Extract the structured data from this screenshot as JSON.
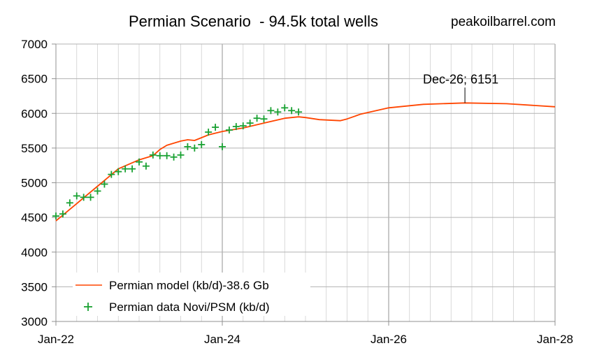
{
  "chart_data": {
    "type": "line",
    "title": "Permian Scenario  - 94.5k total wells",
    "source": "peakoilbarrel.com",
    "xlabel": "",
    "ylabel": "",
    "ylim": [
      3000,
      7000
    ],
    "y_ticks": [
      3000,
      3500,
      4000,
      4500,
      5000,
      5500,
      6000,
      6500,
      7000
    ],
    "x_ticks": [
      "Jan-22",
      "Jan-24",
      "Jan-26",
      "Jan-28"
    ],
    "grid": true,
    "legend_position": "bottom-left",
    "annotation": {
      "text": "Dec-26; 6151",
      "x": "2026-12",
      "y": 6151
    },
    "series": [
      {
        "name": "Permian model (kb/d)-38.6 Gb",
        "kind": "line",
        "color": "#ff4500",
        "x": [
          "2022-01",
          "2022-04",
          "2022-07",
          "2022-10",
          "2023-01",
          "2023-03",
          "2023-04",
          "2023-05",
          "2023-07",
          "2023-08",
          "2023-09",
          "2023-10",
          "2023-11",
          "2024-01",
          "2024-04",
          "2024-07",
          "2024-10",
          "2024-12",
          "2025-01",
          "2025-03",
          "2025-06",
          "2025-07",
          "2025-09",
          "2026-01",
          "2026-06",
          "2026-12",
          "2027-06",
          "2028-01"
        ],
        "y": [
          4450,
          4700,
          4950,
          5200,
          5330,
          5390,
          5480,
          5540,
          5600,
          5620,
          5610,
          5650,
          5690,
          5740,
          5790,
          5860,
          5930,
          5950,
          5940,
          5910,
          5895,
          5920,
          5990,
          6080,
          6130,
          6151,
          6140,
          6095
        ]
      },
      {
        "name": "Permian data Novi/PSM (kb/d)",
        "kind": "scatter",
        "color": "#19a132",
        "x": [
          "2022-01",
          "2022-02",
          "2022-03",
          "2022-04",
          "2022-05",
          "2022-06",
          "2022-07",
          "2022-08",
          "2022-09",
          "2022-10",
          "2022-11",
          "2022-12",
          "2023-01",
          "2023-02",
          "2023-03",
          "2023-04",
          "2023-05",
          "2023-06",
          "2023-07",
          "2023-08",
          "2023-09",
          "2023-10",
          "2023-11",
          "2023-12",
          "2024-01",
          "2024-02",
          "2024-03",
          "2024-04",
          "2024-05",
          "2024-06",
          "2024-07",
          "2024-08",
          "2024-09",
          "2024-10",
          "2024-11",
          "2024-12"
        ],
        "y": [
          4520,
          4550,
          4710,
          4810,
          4790,
          4790,
          4880,
          4980,
          5120,
          5160,
          5200,
          5200,
          5300,
          5240,
          5400,
          5390,
          5390,
          5370,
          5400,
          5520,
          5500,
          5550,
          5730,
          5800,
          5520,
          5760,
          5810,
          5820,
          5860,
          5930,
          5920,
          6040,
          6020,
          6080,
          6040,
          6020
        ]
      }
    ]
  }
}
